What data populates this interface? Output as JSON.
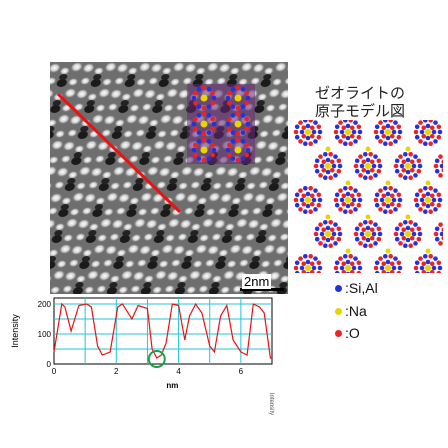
{
  "model": {
    "title_line1": "ゼオライトの",
    "title_line2": "原子モデル図",
    "legend": [
      {
        "label": "●:Si,Al",
        "color": "#2233dd"
      },
      {
        "label": "●:Na",
        "color": "#e8d400"
      },
      {
        "label": "●:O",
        "color": "#ee2222"
      }
    ]
  },
  "stem": {
    "scalebar_label": "2nm"
  },
  "chart_data": {
    "type": "line",
    "xlabel": "nm",
    "ylabel": "Intensity",
    "xlim": [
      0,
      7
    ],
    "ylim": [
      0,
      220
    ],
    "x_ticks": [
      "0",
      "2",
      "4",
      "6"
    ],
    "y_ticks": [
      "0",
      "100",
      "200"
    ],
    "grid": true,
    "series": [
      {
        "x": [
          0.0,
          0.25,
          0.35,
          0.55,
          0.8,
          1.05,
          1.2,
          1.4,
          1.55,
          1.8,
          2.05,
          2.2,
          2.5,
          2.7,
          3.0,
          3.15,
          3.3,
          3.45,
          3.6,
          3.8,
          4.0,
          4.2,
          4.35,
          4.55,
          4.75,
          5.0,
          5.15,
          5.35,
          5.55,
          5.75,
          6.0,
          6.2,
          6.4,
          6.6,
          6.75,
          6.95,
          7.0
        ],
        "y": [
          40,
          200,
          190,
          110,
          195,
          200,
          190,
          60,
          30,
          40,
          190,
          200,
          150,
          195,
          185,
          50,
          20,
          30,
          70,
          200,
          195,
          80,
          160,
          200,
          170,
          60,
          40,
          160,
          195,
          80,
          40,
          30,
          200,
          190,
          170,
          20,
          20
        ]
      }
    ],
    "annotation": {
      "label": "circled minimum",
      "x": 3.3,
      "y": 20
    }
  }
}
